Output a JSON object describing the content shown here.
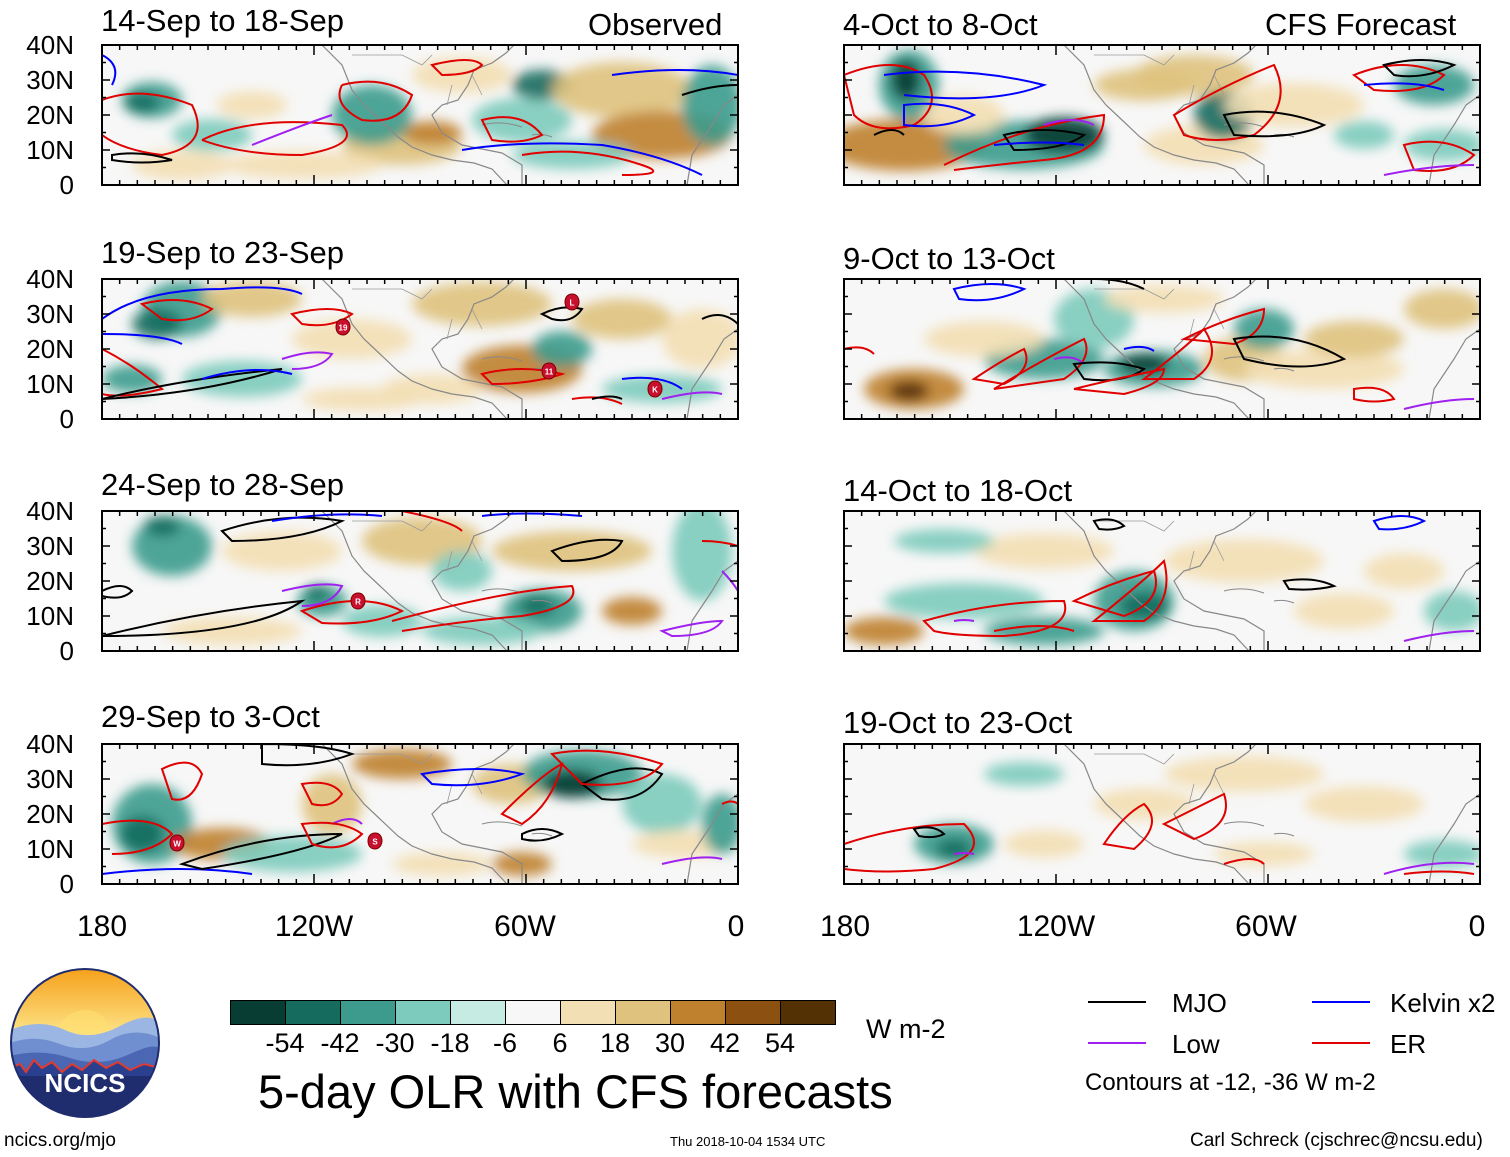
{
  "panels_left_header": "Observed",
  "panels_right_header": "CFS Forecast",
  "panels": [
    {
      "id": "obs1",
      "title": "14-Sep to 18-Sep"
    },
    {
      "id": "obs2",
      "title": "19-Sep to 23-Sep"
    },
    {
      "id": "obs3",
      "title": "24-Sep to 28-Sep"
    },
    {
      "id": "obs4",
      "title": "29-Sep to 3-Oct"
    },
    {
      "id": "fc1",
      "title": "4-Oct to 8-Oct"
    },
    {
      "id": "fc2",
      "title": "9-Oct to 13-Oct"
    },
    {
      "id": "fc3",
      "title": "14-Oct to 18-Oct"
    },
    {
      "id": "fc4",
      "title": "19-Oct to 23-Oct"
    }
  ],
  "y_axis_labels": [
    "40N",
    "30N",
    "20N",
    "10N",
    "0"
  ],
  "x_axis_labels": [
    "180",
    "120W",
    "60W",
    "0"
  ],
  "storm_markers": [
    {
      "panel": "obs2",
      "label": "L"
    },
    {
      "panel": "obs2",
      "label": "19"
    },
    {
      "panel": "obs2",
      "label": "11"
    },
    {
      "panel": "obs2",
      "label": "K"
    },
    {
      "panel": "obs3",
      "label": "R"
    },
    {
      "panel": "obs4",
      "label": "W"
    },
    {
      "panel": "obs4",
      "label": "S"
    }
  ],
  "colorbar": {
    "ticks": [
      "-54",
      "-42",
      "-30",
      "-18",
      "-6",
      "6",
      "18",
      "30",
      "42",
      "54"
    ],
    "colors": [
      "#073d33",
      "#146b5e",
      "#3c9b8d",
      "#7dcbbc",
      "#c6ebe2",
      "#f7f7f7",
      "#f3dfb4",
      "#dfc27d",
      "#bf812d",
      "#8c5011",
      "#543005"
    ],
    "units": "W m-2"
  },
  "legend": {
    "items": [
      {
        "label": "MJO",
        "color": "#000000"
      },
      {
        "label": "Kelvin x2",
        "color": "#0000ff"
      },
      {
        "label": "Low",
        "color": "#a020f0"
      },
      {
        "label": "ER",
        "color": "#e00000"
      }
    ],
    "note": "Contours at -12, -36 W m-2"
  },
  "main_title": "5-day OLR with CFS forecasts",
  "logo_text": "NCICS",
  "footer": {
    "url": "ncics.org/mjo",
    "timestamp": "Thu 2018-10-04 1534 UTC",
    "credit": "Carl Schreck (cjschrec@ncsu.edu)"
  }
}
